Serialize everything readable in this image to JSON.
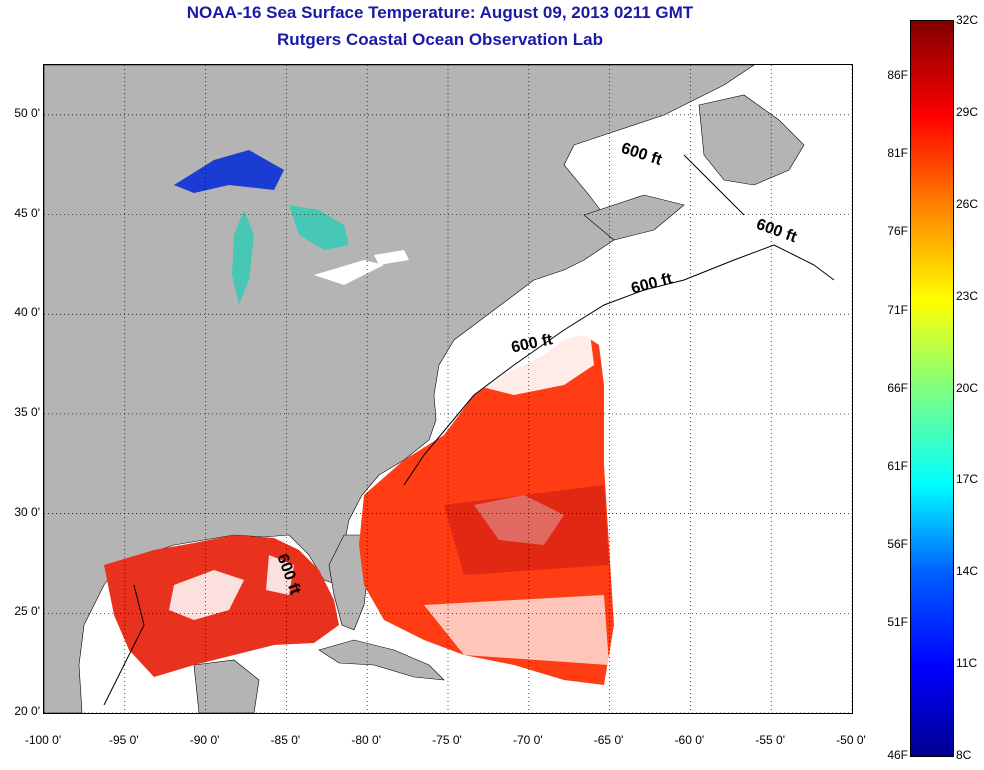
{
  "title": {
    "line1": "NOAA-16 Sea Surface Temperature:  August 09, 2013 0211 GMT",
    "line2": "Rutgers Coastal Ocean Observation Lab"
  },
  "map": {
    "lon_range": [
      -100,
      -50
    ],
    "lat_range": [
      20,
      52.5
    ],
    "y_ticks": [
      {
        "lat": 50,
        "label": "50 0'"
      },
      {
        "lat": 45,
        "label": "45 0'"
      },
      {
        "lat": 40,
        "label": "40 0'"
      },
      {
        "lat": 35,
        "label": "35 0'"
      },
      {
        "lat": 30,
        "label": "30 0'"
      },
      {
        "lat": 25,
        "label": "25 0'"
      },
      {
        "lat": 20,
        "label": "20 0'"
      }
    ],
    "x_ticks": [
      {
        "lon": -100,
        "label": "-100 0'"
      },
      {
        "lon": -95,
        "label": "-95 0'"
      },
      {
        "lon": -90,
        "label": "-90 0'"
      },
      {
        "lon": -85,
        "label": "-85 0'"
      },
      {
        "lon": -80,
        "label": "-80 0'"
      },
      {
        "lon": -75,
        "label": "-75 0'"
      },
      {
        "lon": -70,
        "label": "-70 0'"
      },
      {
        "lon": -65,
        "label": "-65 0'"
      },
      {
        "lon": -60,
        "label": "-60 0'"
      },
      {
        "lon": -55,
        "label": "-55 0'"
      },
      {
        "lon": -50,
        "label": "-50 0'"
      }
    ],
    "contour_label": "600 ft",
    "colors": {
      "land": "#b4b4b4",
      "lake_cold": "#1a3cd2",
      "lake_warm": "#46c8b4",
      "sst_warm": "#e8321e",
      "sst_hot": "#ff3c14",
      "cloud": "#ffffff"
    }
  },
  "colorbar": {
    "temp_range_c": [
      8,
      32
    ],
    "celsius_labels": [
      "32C",
      "29C",
      "26C",
      "23C",
      "20C",
      "17C",
      "14C",
      "11C",
      "8C"
    ],
    "fahrenheit_labels": [
      "86F",
      "81F",
      "76F",
      "71F",
      "66F",
      "61F",
      "56F",
      "51F",
      "46F"
    ],
    "gradient": [
      "#00008f",
      "#0000ff",
      "#0060ff",
      "#00ffff",
      "#7fff7f",
      "#ffff00",
      "#ff8000",
      "#ff0000",
      "#800000"
    ]
  }
}
